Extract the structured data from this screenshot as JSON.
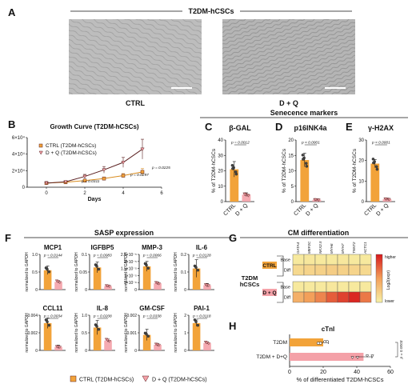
{
  "header": {
    "panel_A": "A",
    "title": "T2DM-hCSCs",
    "ctrl_label": "CTRL",
    "dq_label": "D + Q"
  },
  "colors": {
    "ctrl": "#f2a33a",
    "dq_fill": "#f4a1a8",
    "dq_line": "#5a1f1f",
    "heat_low": "#f7f1a6",
    "heat_high": "#d7191c",
    "photo": "#b9b9b9"
  },
  "section_titles": {
    "senescence": "Senecence markers",
    "sasp": "SASP expression",
    "cm": "CM differentiation"
  },
  "chart_data": [
    {
      "id": "B",
      "panel": "B",
      "type": "line",
      "title": "Growth Curve (T2DM-hCSCs)",
      "xlabel": "Days",
      "ylabel": "",
      "xlim": [
        -1,
        6
      ],
      "ylim": [
        0,
        60000
      ],
      "xticks": [
        "0",
        "2",
        "4",
        "6"
      ],
      "yticks": [
        "0",
        "2×10⁴",
        "4×10⁴",
        "6×10⁴"
      ],
      "x": [
        0,
        1,
        2,
        3,
        4,
        5
      ],
      "series": [
        {
          "name": "CTRL (T2DM-hCSCs)",
          "values": [
            5000,
            6000,
            8000,
            10500,
            14000,
            18500
          ]
        },
        {
          "name": "D + Q (T2DM-hCSCs)",
          "values": [
            5000,
            6500,
            13000,
            21000,
            30000,
            46000
          ]
        }
      ],
      "errors": [
        [
          500,
          600,
          900,
          1500,
          2500,
          4000
        ],
        [
          500,
          900,
          2500,
          4000,
          6000,
          12000
        ]
      ],
      "annotations": [
        "p = 0.0311",
        "p = 0.0297",
        "p = 0.0225"
      ]
    },
    {
      "id": "C",
      "panel": "C",
      "type": "bar",
      "title": "β-GAL",
      "ylabel": "% of T2DM-hCSCs",
      "categories": [
        "CTRL",
        "D + Q"
      ],
      "values": [
        21,
        4.5
      ],
      "errors": [
        5,
        1.2
      ],
      "ylim": [
        0,
        40
      ],
      "yticks": [
        "0",
        "10",
        "20",
        "30",
        "40"
      ],
      "annotations": [
        "p = 0.0012"
      ]
    },
    {
      "id": "D",
      "panel": "D",
      "type": "bar",
      "title": "p16INK4a",
      "ylabel": "% of T2DM-hCSCs",
      "categories": [
        "CTRL",
        "D + Q"
      ],
      "values": [
        13.5,
        0.6
      ],
      "errors": [
        2.2,
        0.3
      ],
      "ylim": [
        0,
        20
      ],
      "yticks": [
        "0",
        "5",
        "10",
        "15",
        "20"
      ],
      "annotations": [
        "p < 0.0001"
      ]
    },
    {
      "id": "E",
      "panel": "E",
      "type": "bar",
      "title": "γ-H2AX",
      "ylabel": "% of T2DM-hCSCs",
      "categories": [
        "CTRL",
        "D + Q"
      ],
      "values": [
        18.5,
        1.2
      ],
      "errors": [
        2,
        0.5
      ],
      "ylim": [
        0,
        30
      ],
      "yticks": [
        "0",
        "10",
        "20",
        "30"
      ],
      "annotations": [
        "p < 0.0001"
      ]
    },
    {
      "id": "F1",
      "panel": "F",
      "type": "bar",
      "title": "MCP1",
      "ylabel": "normalized to GAPDH",
      "categories": [
        "CTRL",
        "D + Q"
      ],
      "values": [
        0.55,
        0.22
      ],
      "errors": [
        0.12,
        0.03
      ],
      "ylim": [
        0,
        1.0
      ],
      "yticks": [
        "0",
        "0.5",
        "1.0"
      ],
      "annotations": [
        "p = 0.0144"
      ]
    },
    {
      "id": "F2",
      "type": "bar",
      "title": "IGFBP5",
      "ylabel": "normalized to GAPDH",
      "categories": [
        "CTRL",
        "D + Q"
      ],
      "values": [
        0.063,
        0.01
      ],
      "errors": [
        0.015,
        0.003
      ],
      "ylim": [
        0,
        0.1
      ],
      "yticks": [
        "0",
        "0.05",
        "0.1"
      ],
      "annotations": [
        "p = 0.0083"
      ]
    },
    {
      "id": "F3",
      "type": "bar",
      "title": "MMP-3",
      "ylabel": "normalized to GAPDH",
      "categories": [
        "CTRL",
        "D + Q"
      ],
      "values": [
        1.65e-05,
        4.5e-06
      ],
      "errors": [
        3.5e-06,
        1e-06
      ],
      "ylim": [
        0,
        2.5e-05
      ],
      "yticks": [
        "0",
        "5×10⁻⁶",
        "1×10⁻⁵",
        "1.5×10⁻⁵",
        "2×10⁻⁵",
        "2.5×10⁻⁵"
      ],
      "annotations": [
        "p = 0.0066"
      ]
    },
    {
      "id": "F4",
      "type": "bar",
      "title": "IL-6",
      "ylabel": "normalized to GAPDH",
      "categories": [
        "CTRL",
        "D + Q"
      ],
      "values": [
        0.12,
        0.025
      ],
      "errors": [
        0.05,
        0.01
      ],
      "ylim": [
        0,
        0.2
      ],
      "yticks": [
        "0",
        "0.1",
        "0.2"
      ],
      "annotations": [
        "p = 0.0128"
      ]
    },
    {
      "id": "F5",
      "type": "bar",
      "title": "CCL11",
      "ylabel": "normalized to GAPDH",
      "categories": [
        "CTRL",
        "D + Q"
      ],
      "values": [
        0.0031,
        0.0004
      ],
      "errors": [
        0.0006,
        0.0002
      ],
      "ylim": [
        0,
        0.004
      ],
      "yticks": [
        "0",
        "0.002",
        "0.004"
      ],
      "annotations": [
        "p = 0.0034"
      ]
    },
    {
      "id": "F6",
      "type": "bar",
      "title": "IL-8",
      "ylabel": "normalized to GAPDH",
      "categories": [
        "CTRL",
        "D + Q"
      ],
      "values": [
        0.65,
        0.28
      ],
      "errors": [
        0.2,
        0.04
      ],
      "ylim": [
        0,
        1.0
      ],
      "yticks": [
        "0",
        "0.5",
        "1.0"
      ],
      "annotations": [
        "p = 0.0208"
      ]
    },
    {
      "id": "F7",
      "type": "bar",
      "title": "GM-CSF",
      "ylabel": "normalized to GAPDH",
      "categories": [
        "CTRL",
        "D + Q"
      ],
      "values": [
        0.0011,
        0.0004
      ],
      "errors": [
        0.0004,
        0.0001
      ],
      "ylim": [
        0,
        0.0025
      ],
      "yticks": [
        "0",
        "0.001",
        "0.002"
      ],
      "annotations": [
        "p = 0.0338"
      ]
    },
    {
      "id": "F8",
      "type": "bar",
      "title": "PAI-1",
      "ylabel": "normalized to GAPDH",
      "categories": [
        "CTRL",
        "D + Q"
      ],
      "values": [
        1.55,
        0.42
      ],
      "errors": [
        0.18,
        0.05
      ],
      "ylim": [
        0,
        2.0
      ],
      "yticks": [
        "0",
        "1",
        "2"
      ],
      "annotations": [
        "p = 0.0118"
      ]
    },
    {
      "id": "G",
      "panel": "G",
      "type": "heatmap",
      "title": "CM differentiation",
      "columns": [
        "GATA4",
        "MEF2C",
        "NKX2.5",
        "MYH6",
        "MYH7",
        "TNNT2",
        "ACTC1"
      ],
      "group_label": "T2DM hCSCs",
      "groups": [
        "CTRL",
        "D + Q"
      ],
      "rows": [
        "Base",
        "Diff",
        "Base",
        "Diff"
      ],
      "values": [
        [
          0.05,
          0.06,
          0.05,
          0.05,
          0.06,
          0.05,
          0.05
        ],
        [
          0.15,
          0.18,
          0.2,
          0.22,
          0.2,
          0.18,
          0.15
        ],
        [
          0.05,
          0.05,
          0.05,
          0.06,
          0.05,
          0.05,
          0.05
        ],
        [
          0.4,
          0.5,
          0.6,
          0.75,
          0.85,
          0.95,
          0.65
        ]
      ],
      "legend": {
        "high": "higher",
        "low": "lower",
        "label": "Log2(expr)"
      }
    },
    {
      "id": "H",
      "panel": "H",
      "type": "bar",
      "orientation": "horizontal",
      "title": "cTnI",
      "xlabel": "% of differentiated T2DM-hCSCs",
      "categories": [
        "T2DM",
        "T2DM + D+Q"
      ],
      "values": [
        20,
        44
      ],
      "errors": [
        3,
        5
      ],
      "xlim": [
        0,
        60
      ],
      "xticks": [
        "0",
        "20",
        "40",
        "60"
      ],
      "annotations": [
        "p = 0.0003"
      ]
    }
  ],
  "legend_F": {
    "ctrl": "CTRL (T2DM-hCSCs)",
    "dq": "D + Q (T2DM-hCSCs)"
  },
  "panel_letters": {
    "F": "F",
    "G": "G",
    "H": "H"
  }
}
